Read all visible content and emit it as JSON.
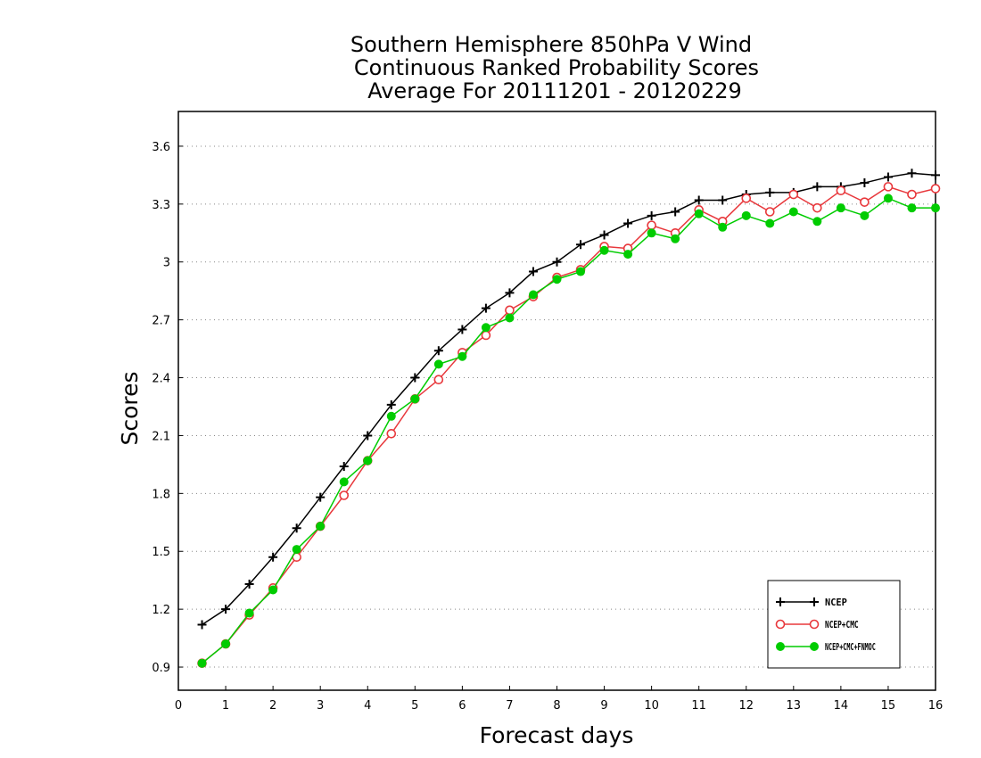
{
  "chart_data": {
    "type": "line",
    "title": [
      "Southern Hemisphere 850hPa V Wind",
      "Continuous Ranked Probability Scores",
      "Average For 20111201 - 20120229"
    ],
    "xlabel": "Forecast days",
    "ylabel": "Scores",
    "xlim": [
      0,
      16
    ],
    "ylim": [
      0.78,
      3.78
    ],
    "xticks": [
      0,
      1,
      2,
      3,
      4,
      5,
      6,
      7,
      8,
      9,
      10,
      11,
      12,
      13,
      14,
      15,
      16
    ],
    "xtick_labels": [
      "0",
      "1",
      "2",
      "3",
      "4",
      "5",
      "6",
      "7",
      "8",
      "9",
      "10",
      "11",
      "12",
      "13",
      "14",
      "15",
      "16"
    ],
    "yticks": [
      0.9,
      1.2,
      1.5,
      1.8,
      2.1,
      2.4,
      2.7,
      3.0,
      3.3,
      3.6
    ],
    "ytick_labels": [
      "0.9",
      "1.2",
      "1.5",
      "1.8",
      "2.1",
      "2.4",
      "2.7",
      "3",
      "3.3",
      "3.6"
    ],
    "grid": "horizontal dotted",
    "legend_position": "bottom-right",
    "x": [
      0.5,
      1,
      1.5,
      2,
      2.5,
      3,
      3.5,
      4,
      4.5,
      5,
      5.5,
      6,
      6.5,
      7,
      7.5,
      8,
      8.5,
      9,
      9.5,
      10,
      10.5,
      11,
      11.5,
      12,
      12.5,
      13,
      13.5,
      14,
      14.5,
      15,
      15.5,
      16
    ],
    "series": [
      {
        "name": "NCEP",
        "color": "#000000",
        "marker": "plus",
        "values": [
          1.12,
          1.2,
          1.33,
          1.47,
          1.62,
          1.78,
          1.94,
          2.1,
          2.26,
          2.4,
          2.54,
          2.65,
          2.76,
          2.84,
          2.95,
          3.0,
          3.09,
          3.14,
          3.2,
          3.24,
          3.26,
          3.32,
          3.32,
          3.35,
          3.36,
          3.36,
          3.39,
          3.39,
          3.41,
          3.44,
          3.46,
          3.45
        ]
      },
      {
        "name": "NCEP+CMC",
        "color": "#e8383c",
        "marker": "open-circle",
        "values": [
          0.92,
          1.02,
          1.17,
          1.31,
          1.47,
          1.63,
          1.79,
          1.97,
          2.11,
          2.29,
          2.39,
          2.53,
          2.62,
          2.75,
          2.82,
          2.92,
          2.96,
          3.08,
          3.07,
          3.19,
          3.15,
          3.27,
          3.21,
          3.33,
          3.26,
          3.35,
          3.28,
          3.37,
          3.31,
          3.39,
          3.35,
          3.38
        ]
      },
      {
        "name": "NCEP+CMC+FNMOC",
        "color": "#00cc00",
        "marker": "filled-circle",
        "values": [
          0.92,
          1.02,
          1.18,
          1.3,
          1.51,
          1.63,
          1.86,
          1.97,
          2.2,
          2.29,
          2.47,
          2.51,
          2.66,
          2.71,
          2.83,
          2.91,
          2.95,
          3.06,
          3.04,
          3.15,
          3.12,
          3.25,
          3.18,
          3.24,
          3.2,
          3.26,
          3.21,
          3.28,
          3.24,
          3.33,
          3.28,
          3.28
        ]
      }
    ]
  }
}
